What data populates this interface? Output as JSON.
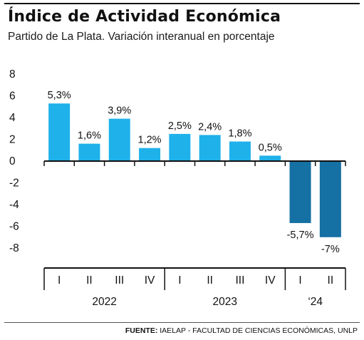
{
  "header": {
    "title": "Índice de Actividad Económica",
    "subtitle": "Partido de La Plata. Variación interanual en porcentaje"
  },
  "footer": {
    "source_label": "FUENTE:",
    "source_text": "IAELAP - FACULTAD DE CIENCIAS ECONÓMICAS, UNLP"
  },
  "colors": {
    "positive_bar": "#1fb1ea",
    "negative_bar": "#1570a3",
    "text": "#111111"
  },
  "chart_data": {
    "type": "bar",
    "title": "Índice de Actividad Económica",
    "subtitle": "Partido de La Plata. Variación interanual en porcentaje",
    "categories": [
      "I",
      "II",
      "III",
      "IV",
      "I",
      "II",
      "III",
      "IV",
      "I",
      "II"
    ],
    "groups": [
      {
        "label": "2022",
        "categories": [
          "I",
          "II",
          "III",
          "IV"
        ]
      },
      {
        "label": "2023",
        "categories": [
          "I",
          "II",
          "III",
          "IV"
        ]
      },
      {
        "label": "‘24",
        "categories": [
          "I",
          "II"
        ]
      }
    ],
    "values": [
      5.3,
      1.6,
      3.9,
      1.2,
      2.5,
      2.4,
      1.8,
      0.5,
      -5.7,
      -7
    ],
    "data_labels": [
      "5,3%",
      "1,6%",
      "3,9%",
      "1,2%",
      "2,5%",
      "2,4%",
      "1,8%",
      "0,5%",
      "-5,7%",
      "-7%"
    ],
    "ylim": [
      -8,
      8
    ],
    "yticks": [
      8,
      6,
      4,
      2,
      0,
      -2,
      -4,
      -6,
      -8
    ],
    "xlabel": "",
    "ylabel": "",
    "grid": false
  }
}
